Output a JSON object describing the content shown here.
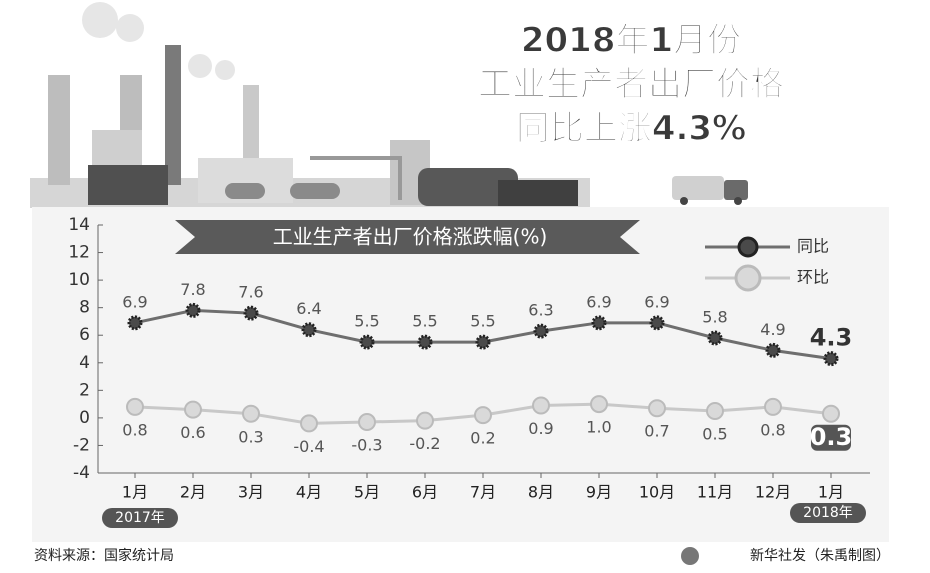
{
  "chart_data": {
    "type": "line",
    "title": [
      "2018年1月份",
      "工业生产者出厂价格",
      "同比上涨4.3%"
    ],
    "subtitle": "工业生产者出厂价格涨跌幅(%)",
    "categories": [
      "1月",
      "2月",
      "3月",
      "4月",
      "5月",
      "6月",
      "7月",
      "8月",
      "9月",
      "10月",
      "11月",
      "12月",
      "1月"
    ],
    "annotations": [
      "2017年",
      "2018年"
    ],
    "series": [
      {
        "name": "同比",
        "color": "#4a4a4a",
        "values": [
          6.9,
          7.8,
          7.6,
          6.4,
          5.5,
          5.5,
          5.5,
          6.3,
          6.9,
          6.9,
          5.8,
          4.9,
          4.3
        ]
      },
      {
        "name": "环比",
        "color": "#d9d9d9",
        "values": [
          0.8,
          0.6,
          0.3,
          -0.4,
          -0.3,
          -0.2,
          0.2,
          0.9,
          1.0,
          0.7,
          0.5,
          0.8,
          0.3
        ],
        "value_labels": [
          "0.8",
          "0.6",
          "0.3",
          "-0.4",
          "-0.3",
          "-0.2",
          "0.2",
          "0.9",
          "1.0",
          "0.7",
          "0.5",
          "0.8",
          "0.3"
        ]
      }
    ],
    "ylim": [
      -4,
      14
    ],
    "yticks": [
      -4,
      -2,
      0,
      2,
      4,
      6,
      8,
      10,
      12,
      14
    ],
    "source": "资料来源：国家统计局",
    "credit": "新华社发（朱禹制图）"
  }
}
